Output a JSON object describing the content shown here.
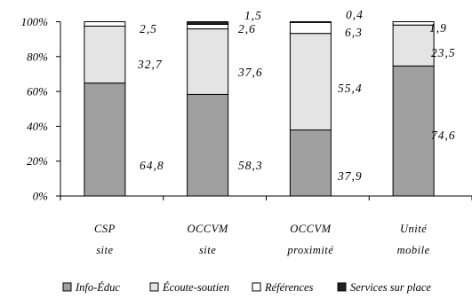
{
  "chart_data": {
    "type": "bar",
    "stacked": true,
    "percent": true,
    "categories": [
      [
        "CSP",
        "site"
      ],
      [
        "OCCVM",
        "site"
      ],
      [
        "OCCVM",
        "proximité"
      ],
      [
        "Unité",
        "mobile"
      ]
    ],
    "series": [
      {
        "name": "Info-Éduc",
        "color": "#a0a0a0",
        "values": [
          64.8,
          58.3,
          37.9,
          74.6
        ],
        "labels": [
          "64,8",
          "58,3",
          "37,9",
          "74,6"
        ]
      },
      {
        "name": "Écoute-soutien",
        "color": "#e4e4e4",
        "values": [
          32.7,
          37.6,
          55.4,
          23.5
        ],
        "labels": [
          "32,7",
          "37,6",
          "55,4",
          "23,5"
        ]
      },
      {
        "name": "Références",
        "color": "#ffffff",
        "values": [
          2.5,
          2.6,
          6.3,
          1.9
        ],
        "labels": [
          "2,5",
          "2,6",
          "6,3",
          "1,9"
        ]
      },
      {
        "name": "Services sur place",
        "color": "#222222",
        "values": [
          0,
          1.5,
          0.4,
          0
        ],
        "labels": [
          "",
          "1,5",
          "0,4",
          ""
        ]
      }
    ],
    "ylim": [
      0,
      100
    ],
    "yticks": [
      "0%",
      "20%",
      "40%",
      "60%",
      "80%",
      "100%"
    ],
    "grid": false,
    "legend": "bottom",
    "xlabel": "",
    "ylabel": ""
  }
}
